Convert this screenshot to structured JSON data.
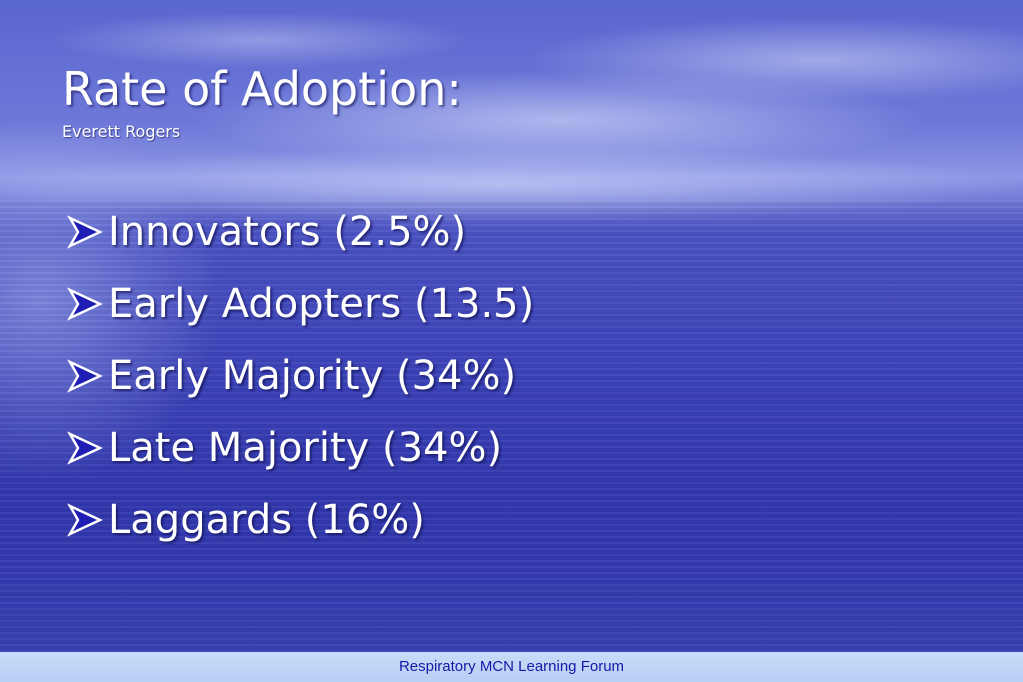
{
  "slide": {
    "title": "Rate of Adoption:",
    "subtitle": "Everett Rogers",
    "bullet_icon": "arrowhead-bullet-icon",
    "bullets": [
      {
        "label": "Innovators (2.5%)"
      },
      {
        "label": "Early Adopters (13.5)"
      },
      {
        "label": "Early Majority (34%)"
      },
      {
        "label": "Late Majority (34%)"
      },
      {
        "label": "Laggards (16%)"
      }
    ]
  },
  "footer": {
    "text": "Respiratory MCN Learning Forum"
  },
  "colors": {
    "text": "#ffffff",
    "bullet_arrow": "#1e1eb4",
    "footer_text": "#1818a8",
    "footer_bg": "#c9dcf8"
  }
}
